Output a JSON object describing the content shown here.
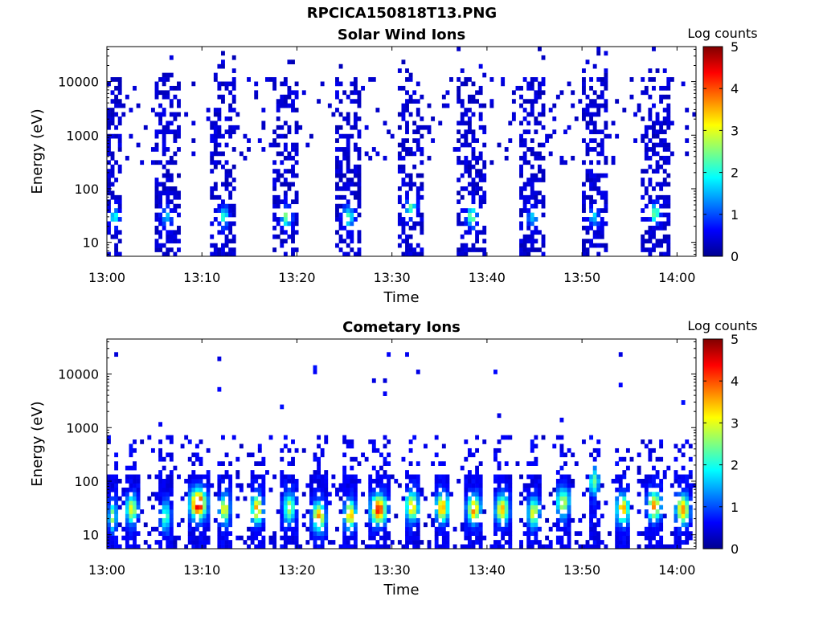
{
  "figure": {
    "title": "RPCICA150818T13.PNG"
  },
  "chart_data": [
    {
      "type": "heatmap",
      "title": "Solar Wind Ions",
      "xlabel": "Time",
      "ylabel": "Energy (eV)",
      "x_ticks": [
        "13:00",
        "13:10",
        "13:20",
        "13:30",
        "13:40",
        "13:50",
        "14:00"
      ],
      "y_ticks": [
        "10",
        "100",
        "1000",
        "10000"
      ],
      "y_scale": "log",
      "ylim": [
        5.5,
        45000
      ],
      "xlim_minutes": [
        0,
        62
      ],
      "colorbar": {
        "label": "Log counts",
        "ticks": [
          "0",
          "1",
          "2",
          "3",
          "4",
          "5"
        ],
        "range": [
          0,
          5
        ],
        "colormap": "jet"
      },
      "bursts": [
        {
          "t": 0.8,
          "width": 1.6,
          "peak_energy": 30,
          "peak_log_counts": 1.6
        },
        {
          "t": 6.3,
          "width": 2.6,
          "peak_energy": 30,
          "peak_log_counts": 1.2
        },
        {
          "t": 12.3,
          "width": 2.6,
          "peak_energy": 30,
          "peak_log_counts": 1.8
        },
        {
          "t": 18.9,
          "width": 2.6,
          "peak_energy": 30,
          "peak_log_counts": 2.2
        },
        {
          "t": 25.4,
          "width": 2.6,
          "peak_energy": 30,
          "peak_log_counts": 2.0
        },
        {
          "t": 32.0,
          "width": 2.8,
          "peak_energy": 45,
          "peak_log_counts": 2.0
        },
        {
          "t": 38.4,
          "width": 2.8,
          "peak_energy": 30,
          "peak_log_counts": 2.3
        },
        {
          "t": 44.8,
          "width": 2.6,
          "peak_energy": 30,
          "peak_log_counts": 1.3
        },
        {
          "t": 51.3,
          "width": 2.8,
          "peak_energy": 30,
          "peak_log_counts": 1.3
        },
        {
          "t": 57.7,
          "width": 2.8,
          "peak_energy": 35,
          "peak_log_counts": 2.2
        }
      ]
    },
    {
      "type": "heatmap",
      "title": "Cometary Ions",
      "xlabel": "Time",
      "ylabel": "Energy (eV)",
      "x_ticks": [
        "13:00",
        "13:10",
        "13:20",
        "13:30",
        "13:40",
        "13:50",
        "14:00"
      ],
      "y_ticks": [
        "10",
        "100",
        "1000",
        "10000"
      ],
      "y_scale": "log",
      "ylim": [
        5.5,
        45000
      ],
      "xlim_minutes": [
        0,
        62
      ],
      "colorbar": {
        "label": "Log counts",
        "ticks": [
          "0",
          "1",
          "2",
          "3",
          "4",
          "5"
        ],
        "range": [
          0,
          5
        ],
        "colormap": "jet"
      },
      "bursts": [
        {
          "t": 0.6,
          "width": 1.2,
          "peak_energy": 22,
          "peak_log_counts": 2.2
        },
        {
          "t": 2.6,
          "width": 1.6,
          "peak_energy": 30,
          "peak_log_counts": 2.6
        },
        {
          "t": 6.2,
          "width": 1.4,
          "peak_energy": 22,
          "peak_log_counts": 1.8
        },
        {
          "t": 9.6,
          "width": 2.2,
          "peak_energy": 38,
          "peak_log_counts": 4.4
        },
        {
          "t": 12.4,
          "width": 1.4,
          "peak_energy": 30,
          "peak_log_counts": 2.8
        },
        {
          "t": 15.8,
          "width": 1.6,
          "peak_energy": 30,
          "peak_log_counts": 3.2
        },
        {
          "t": 19.2,
          "width": 1.6,
          "peak_energy": 32,
          "peak_log_counts": 2.4
        },
        {
          "t": 22.3,
          "width": 1.8,
          "peak_energy": 22,
          "peak_log_counts": 3.1
        },
        {
          "t": 25.6,
          "width": 1.6,
          "peak_energy": 24,
          "peak_log_counts": 3.0
        },
        {
          "t": 28.6,
          "width": 2.2,
          "peak_energy": 30,
          "peak_log_counts": 3.8
        },
        {
          "t": 32.1,
          "width": 1.8,
          "peak_energy": 34,
          "peak_log_counts": 2.9
        },
        {
          "t": 35.3,
          "width": 1.8,
          "peak_energy": 32,
          "peak_log_counts": 3.2
        },
        {
          "t": 38.6,
          "width": 1.8,
          "peak_energy": 30,
          "peak_log_counts": 3.3
        },
        {
          "t": 41.6,
          "width": 1.8,
          "peak_energy": 30,
          "peak_log_counts": 3.0
        },
        {
          "t": 44.9,
          "width": 1.6,
          "peak_energy": 26,
          "peak_log_counts": 2.6
        },
        {
          "t": 48.0,
          "width": 1.8,
          "peak_energy": 40,
          "peak_log_counts": 2.4
        },
        {
          "t": 51.3,
          "width": 1.4,
          "peak_energy": 100,
          "peak_log_counts": 1.9
        },
        {
          "t": 54.3,
          "width": 1.8,
          "peak_energy": 30,
          "peak_log_counts": 3.1
        },
        {
          "t": 57.6,
          "width": 1.8,
          "peak_energy": 34,
          "peak_log_counts": 3.2
        },
        {
          "t": 60.6,
          "width": 1.8,
          "peak_energy": 30,
          "peak_log_counts": 3.3
        }
      ]
    }
  ]
}
